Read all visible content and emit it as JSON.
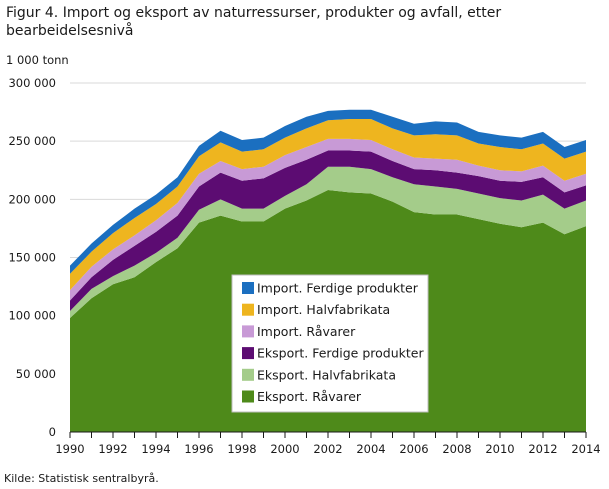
{
  "title": "Figur 4. Import og eksport av naturressurser, produkter og avfall, etter bearbeidelsesnivå",
  "source": "Kilde: Statistisk sentralbyrå.",
  "chart_data": {
    "type": "area",
    "stacked": true,
    "ylabel": "1 000 tonn",
    "ylim": [
      0,
      300000
    ],
    "yticks": [
      0,
      50000,
      100000,
      150000,
      200000,
      250000,
      300000
    ],
    "ytick_labels": [
      "0",
      "50 000",
      "100 000",
      "150 000",
      "200 000",
      "250 000",
      "300 000"
    ],
    "x": [
      1990,
      1991,
      1992,
      1993,
      1994,
      1995,
      1996,
      1997,
      1998,
      1999,
      2000,
      2001,
      2002,
      2003,
      2004,
      2005,
      2006,
      2007,
      2008,
      2009,
      2010,
      2011,
      2012,
      2013,
      2014
    ],
    "xtick_labels": [
      "1990",
      "1992",
      "1994",
      "1996",
      "1998",
      "2000",
      "2002",
      "2004",
      "2006",
      "2008",
      "2010",
      "2012",
      "2014"
    ],
    "grid": "horizontal",
    "legend_position": "center",
    "series": [
      {
        "name": "Eksport. Råvarer",
        "color": "#4e8a1a",
        "values": [
          98000,
          115000,
          127000,
          133000,
          146000,
          158000,
          180000,
          186000,
          181000,
          181000,
          192000,
          199000,
          208000,
          206000,
          205000,
          198000,
          189000,
          187000,
          187000,
          183000,
          179000,
          176000,
          180000,
          170000,
          177000
        ]
      },
      {
        "name": "Eksport. Halvfabrikata",
        "color": "#a4cc8a",
        "values": [
          6000,
          8000,
          7000,
          10000,
          8000,
          9000,
          11000,
          14000,
          11000,
          11000,
          11000,
          14000,
          20000,
          22000,
          21000,
          21000,
          24000,
          24000,
          22000,
          22000,
          22000,
          23000,
          24000,
          22000,
          22000
        ]
      },
      {
        "name": "Eksport. Ferdige produkter",
        "color": "#5c0c72",
        "values": [
          9000,
          10000,
          14000,
          17000,
          18000,
          19000,
          20000,
          23000,
          24000,
          26000,
          24000,
          21000,
          14000,
          14000,
          15000,
          14000,
          13000,
          14000,
          14000,
          15000,
          15000,
          16000,
          15000,
          14000,
          13000
        ]
      },
      {
        "name": "Import. Råvarer",
        "color": "#c89ad6",
        "values": [
          9000,
          9000,
          9000,
          9000,
          10000,
          11000,
          11000,
          10000,
          10000,
          10000,
          11000,
          11000,
          10000,
          10000,
          10000,
          10000,
          10000,
          10000,
          11000,
          9000,
          9000,
          9000,
          10000,
          10000,
          10000
        ]
      },
      {
        "name": "Import. Halvfabrikata",
        "color": "#eeb51f",
        "values": [
          14000,
          13000,
          14000,
          15000,
          14000,
          14000,
          15000,
          16000,
          15000,
          15000,
          15000,
          16000,
          16000,
          17000,
          18000,
          18000,
          19000,
          21000,
          21000,
          19000,
          20000,
          19000,
          19000,
          19000,
          19000
        ]
      },
      {
        "name": "Import. Ferdige produkter",
        "color": "#1b6fc0",
        "values": [
          7000,
          7000,
          7000,
          8000,
          8000,
          8000,
          9000,
          10000,
          10000,
          10000,
          10000,
          10000,
          8000,
          8000,
          8000,
          10000,
          10000,
          11000,
          11000,
          10000,
          10000,
          10000,
          10000,
          10000,
          10000
        ]
      }
    ]
  }
}
